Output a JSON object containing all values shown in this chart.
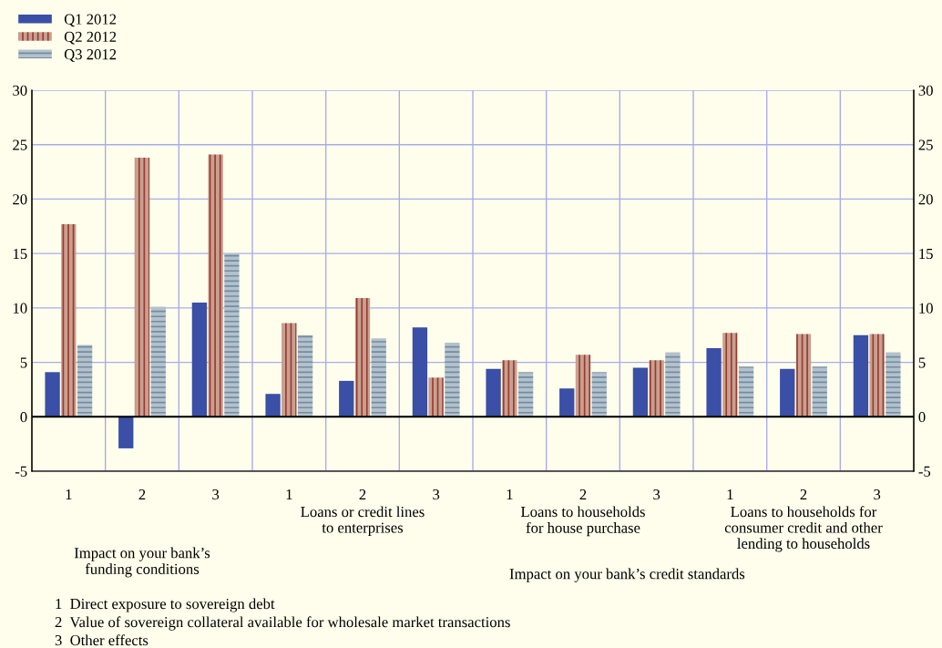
{
  "chart_data": {
    "type": "bar",
    "categories": [
      "1",
      "2",
      "3",
      "1",
      "2",
      "3",
      "1",
      "2",
      "3",
      "1",
      "2",
      "3"
    ],
    "series": [
      {
        "name": "Q1 2012",
        "color": "#3a4fa5",
        "values": [
          4.1,
          -2.9,
          10.5,
          2.1,
          3.3,
          8.2,
          4.4,
          2.6,
          4.5,
          6.3,
          4.4,
          7.5
        ]
      },
      {
        "name": "Q2 2012",
        "color": "#c8a090",
        "values": [
          17.7,
          23.8,
          24.1,
          8.6,
          10.9,
          3.6,
          5.2,
          5.7,
          5.2,
          7.7,
          7.6,
          7.6
        ]
      },
      {
        "name": "Q3 2012",
        "color": "#b4c0cc",
        "values": [
          6.6,
          10.1,
          15.0,
          7.5,
          7.2,
          6.8,
          4.1,
          4.1,
          5.9,
          4.6,
          4.6,
          5.9
        ]
      }
    ],
    "ylim": [
      -5,
      30
    ],
    "yticks": [
      -5,
      0,
      5,
      10,
      15,
      20,
      25,
      30
    ],
    "y2lim": [
      -5,
      30
    ],
    "y2ticks": [
      -5,
      0,
      5,
      10,
      15,
      20,
      25,
      30
    ],
    "ref_lines": [
      {
        "axis": "y",
        "value": 0,
        "color": "#000000"
      }
    ],
    "grid": true,
    "legend": "top left",
    "annotations": [
      "Impact on your bank’s\nfunding conditions",
      "Loans or credit lines\nto enterprises",
      "Loans to households\nfor house purchase",
      "Loans to households for\nconsumer credit and other\nlending to households",
      "Impact on your bank’s credit standards",
      "1  Direct exposure to sovereign debt",
      "2  Value of sovereign collateral available for wholesale market transactions",
      "3  Other effects"
    ]
  }
}
